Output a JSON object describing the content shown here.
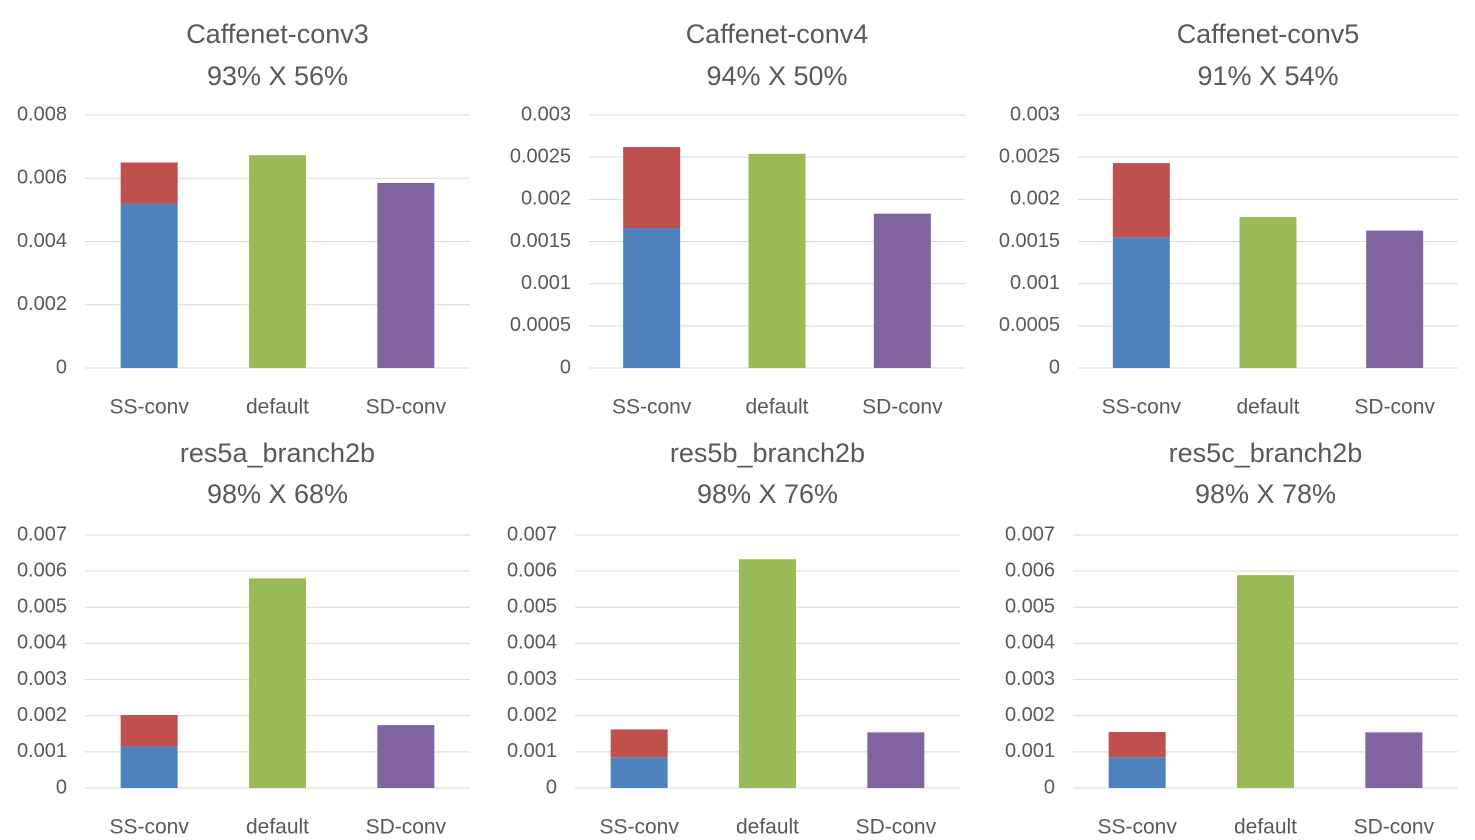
{
  "chart_data": [
    {
      "type": "bar",
      "stacked": true,
      "title": "Caffenet-conv3",
      "subtitle": "93% X 56%",
      "categories": [
        "SS-conv",
        "default",
        "SD-conv"
      ],
      "yticks": [
        "0",
        "0.002",
        "0.004",
        "0.006",
        "0.008"
      ],
      "ylim": [
        0,
        0.008
      ],
      "grid": true,
      "series": [
        {
          "values": [
            0.0052,
            0,
            0
          ],
          "color": "#4f81bd"
        },
        {
          "values": [
            0.0013,
            0,
            0
          ],
          "color": "#c0504d"
        },
        {
          "values": [
            0,
            0.00673,
            0
          ],
          "color": "#9bbb59"
        },
        {
          "values": [
            0,
            0,
            0.00585
          ],
          "color": "#8064a2"
        }
      ]
    },
    {
      "type": "bar",
      "stacked": true,
      "title": "Caffenet-conv4",
      "subtitle": "94% X 50%",
      "categories": [
        "SS-conv",
        "default",
        "SD-conv"
      ],
      "yticks": [
        "0",
        "0.0005",
        "0.001",
        "0.0015",
        "0.002",
        "0.0025",
        "0.003"
      ],
      "ylim": [
        0,
        0.003
      ],
      "grid": true,
      "series": [
        {
          "values": [
            0.00166,
            0,
            0
          ],
          "color": "#4f81bd"
        },
        {
          "values": [
            0.00096,
            0,
            0
          ],
          "color": "#c0504d"
        },
        {
          "values": [
            0,
            0.00254,
            0
          ],
          "color": "#9bbb59"
        },
        {
          "values": [
            0,
            0,
            0.00183
          ],
          "color": "#8064a2"
        }
      ]
    },
    {
      "type": "bar",
      "stacked": true,
      "title": "Caffenet-conv5",
      "subtitle": "91% X 54%",
      "categories": [
        "SS-conv",
        "default",
        "SD-conv"
      ],
      "yticks": [
        "0",
        "0.0005",
        "0.001",
        "0.0015",
        "0.002",
        "0.0025",
        "0.003"
      ],
      "ylim": [
        0,
        0.003
      ],
      "grid": true,
      "series": [
        {
          "values": [
            0.00155,
            0,
            0
          ],
          "color": "#4f81bd"
        },
        {
          "values": [
            0.00088,
            0,
            0
          ],
          "color": "#c0504d"
        },
        {
          "values": [
            0,
            0.00179,
            0
          ],
          "color": "#9bbb59"
        },
        {
          "values": [
            0,
            0,
            0.00163
          ],
          "color": "#8064a2"
        }
      ]
    },
    {
      "type": "bar",
      "stacked": true,
      "title": "res5a_branch2b",
      "subtitle": "98% X 68%",
      "categories": [
        "SS-conv",
        "default",
        "SD-conv"
      ],
      "yticks": [
        "0",
        "0.001",
        "0.002",
        "0.003",
        "0.004",
        "0.005",
        "0.006",
        "0.007"
      ],
      "ylim": [
        0,
        0.007
      ],
      "grid": true,
      "series": [
        {
          "values": [
            0.00115,
            0,
            0
          ],
          "color": "#4f81bd"
        },
        {
          "values": [
            0.00087,
            0,
            0
          ],
          "color": "#c0504d"
        },
        {
          "values": [
            0,
            0.0058,
            0
          ],
          "color": "#9bbb59"
        },
        {
          "values": [
            0,
            0,
            0.00174
          ],
          "color": "#8064a2"
        }
      ]
    },
    {
      "type": "bar",
      "stacked": true,
      "title": "res5b_branch2b",
      "subtitle": "98% X 76%",
      "categories": [
        "SS-conv",
        "default",
        "SD-conv"
      ],
      "yticks": [
        "0",
        "0.001",
        "0.002",
        "0.003",
        "0.004",
        "0.005",
        "0.006",
        "0.007"
      ],
      "ylim": [
        0,
        0.007
      ],
      "grid": true,
      "series": [
        {
          "values": [
            0.00085,
            0,
            0
          ],
          "color": "#4f81bd"
        },
        {
          "values": [
            0.00077,
            0,
            0
          ],
          "color": "#c0504d"
        },
        {
          "values": [
            0,
            0.00633,
            0
          ],
          "color": "#9bbb59"
        },
        {
          "values": [
            0,
            0,
            0.00154
          ],
          "color": "#8064a2"
        }
      ]
    },
    {
      "type": "bar",
      "stacked": true,
      "title": "res5c_branch2b",
      "subtitle": "98% X 78%",
      "categories": [
        "SS-conv",
        "default",
        "SD-conv"
      ],
      "yticks": [
        "0",
        "0.001",
        "0.002",
        "0.003",
        "0.004",
        "0.005",
        "0.006",
        "0.007"
      ],
      "ylim": [
        0,
        0.007
      ],
      "grid": true,
      "series": [
        {
          "values": [
            0.00085,
            0,
            0
          ],
          "color": "#4f81bd"
        },
        {
          "values": [
            0.0007,
            0,
            0
          ],
          "color": "#c0504d"
        },
        {
          "values": [
            0,
            0.00589,
            0
          ],
          "color": "#9bbb59"
        },
        {
          "values": [
            0,
            0,
            0.00154
          ],
          "color": "#8064a2"
        }
      ]
    }
  ]
}
